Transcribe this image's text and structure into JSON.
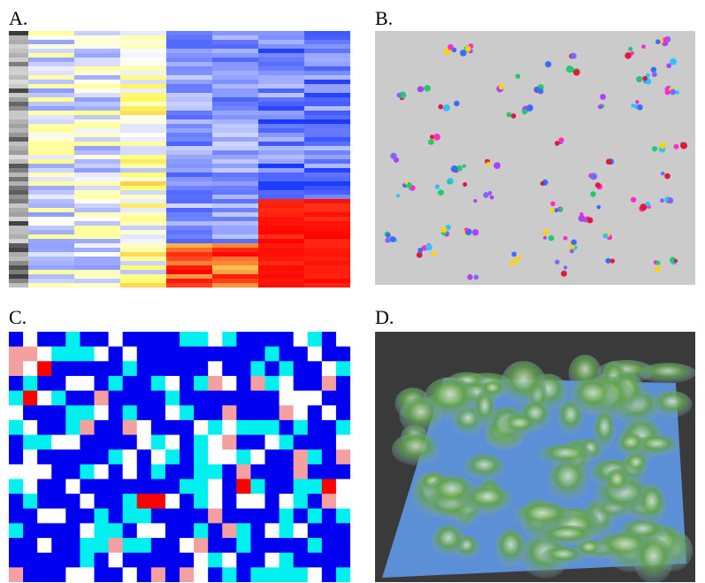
{
  "panels": [
    {
      "label": "A."
    },
    {
      "label": "B."
    },
    {
      "label": "C."
    },
    {
      "label": "D."
    }
  ]
}
